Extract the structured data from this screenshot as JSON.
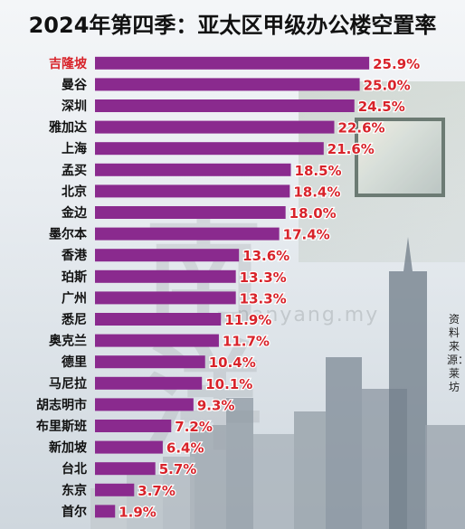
{
  "title": "2024年第四季：亚太区甲级办公楼空置率",
  "source": "资料来源：莱坊",
  "watermark": {
    "logo": "南洋",
    "url": "nanyang.my"
  },
  "colors": {
    "bar": "#8a2a8e",
    "value": "#d8232a",
    "highlight_label": "#d8232a",
    "label": "#111111"
  },
  "chart_data": {
    "type": "bar",
    "orientation": "horizontal",
    "title": "2024年第四季：亚太区甲级办公楼空置率",
    "xlabel": "",
    "ylabel": "",
    "unit": "%",
    "xlim": [
      0,
      27
    ],
    "highlight": "吉隆坡",
    "categories": [
      "吉隆坡",
      "曼谷",
      "深圳",
      "雅加达",
      "上海",
      "孟买",
      "北京",
      "金边",
      "墨尔本",
      "香港",
      "珀斯",
      "广州",
      "悉尼",
      "奥克兰",
      "德里",
      "马尼拉",
      "胡志明市",
      "布里斯班",
      "新加坡",
      "台北",
      "东京",
      "首尔"
    ],
    "values": [
      25.9,
      25.0,
      24.5,
      22.6,
      21.6,
      18.5,
      18.4,
      18.0,
      17.4,
      13.6,
      13.3,
      13.3,
      11.9,
      11.7,
      10.4,
      10.1,
      9.3,
      7.2,
      6.4,
      5.7,
      3.7,
      1.9
    ],
    "value_labels": [
      "25.9%",
      "25.0%",
      "24.5%",
      "22.6%",
      "21.6%",
      "18.5%",
      "18.4%",
      "18.0%",
      "17.4%",
      "13.6%",
      "13.3%",
      "13.3%",
      "11.9%",
      "11.7%",
      "10.4%",
      "10.1%",
      "9.3%",
      "7.2%",
      "6.4%",
      "5.7%",
      "3.7%",
      "1.9%"
    ],
    "grid": false,
    "legend": "none"
  }
}
